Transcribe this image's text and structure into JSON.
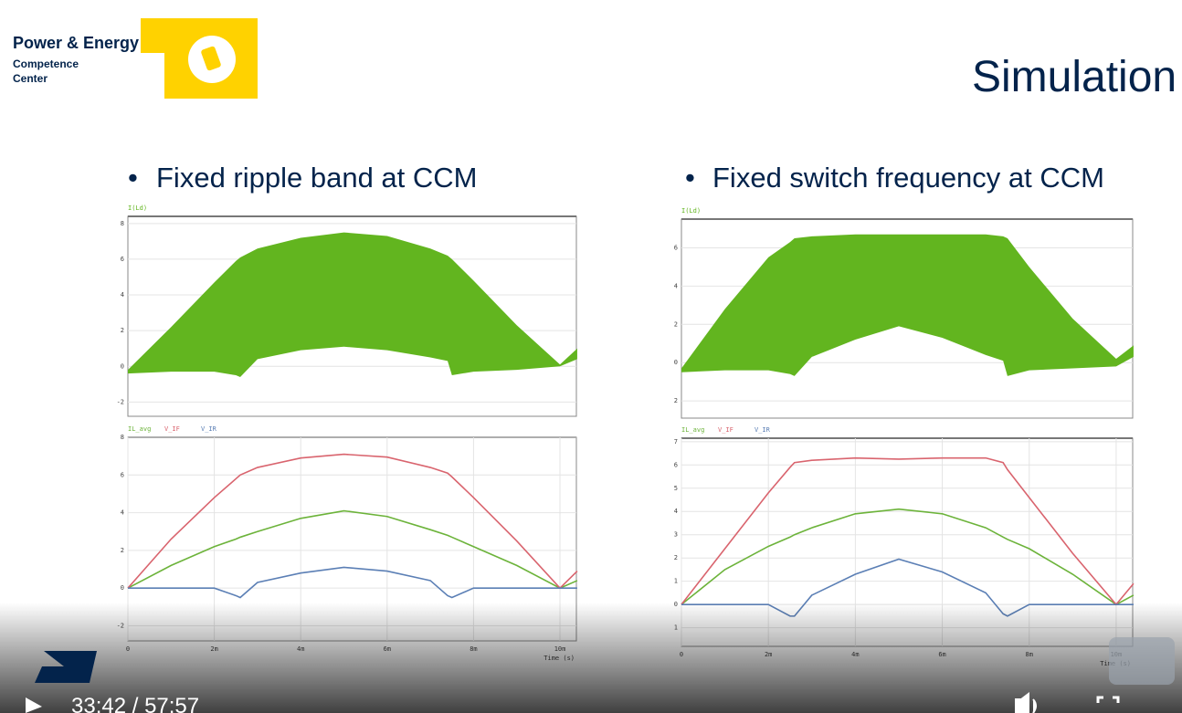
{
  "header": {
    "brand_line1": "Power & Energy",
    "brand_line2": "Competence",
    "brand_line3": "Center",
    "title": "Simulation"
  },
  "bullets": [
    "Fixed ripple band at CCM",
    "Fixed switch frequency at CCM"
  ],
  "player": {
    "time": "33:42 / 57:57"
  },
  "chart_data": [
    {
      "type": "band",
      "x": [
        0,
        1,
        2,
        2.5,
        2.6,
        3,
        4,
        5,
        6,
        7,
        7.4,
        7.5,
        8,
        9,
        10,
        10.4
      ],
      "series": [
        {
          "name": "I(Ld)",
          "color": "#62b51f",
          "upper": [
            -0.2,
            2.2,
            4.7,
            5.9,
            6.1,
            6.6,
            7.2,
            7.5,
            7.3,
            6.6,
            6.2,
            6.0,
            4.8,
            2.3,
            0.1,
            1.0
          ],
          "lower": [
            -0.4,
            -0.3,
            -0.3,
            -0.5,
            -0.6,
            0.4,
            0.9,
            1.1,
            0.9,
            0.5,
            0.3,
            -0.5,
            -0.3,
            -0.2,
            0,
            0.4
          ]
        }
      ],
      "xlim": [
        0,
        10.38
      ],
      "ylim": [
        -2.8,
        8.4
      ],
      "yticks": [
        8,
        6,
        4,
        2,
        0,
        -2
      ],
      "grid": true
    },
    {
      "type": "line",
      "x": [
        0,
        1,
        2,
        2.5,
        2.6,
        3,
        4,
        5,
        6,
        7,
        7.4,
        7.5,
        8,
        9,
        10,
        10.4
      ],
      "series": [
        {
          "name": "IL_avg",
          "color": "#6cb33a",
          "values": [
            0,
            1.2,
            2.2,
            2.6,
            2.7,
            3.0,
            3.7,
            4.1,
            3.8,
            3.1,
            2.8,
            2.7,
            2.2,
            1.2,
            0,
            0.4
          ]
        },
        {
          "name": "V_IF",
          "color": "#d9646e",
          "values": [
            0,
            2.6,
            4.8,
            5.8,
            6.0,
            6.4,
            6.9,
            7.1,
            6.95,
            6.4,
            6.1,
            5.9,
            4.8,
            2.5,
            0,
            0.9
          ]
        },
        {
          "name": "V_IR",
          "color": "#5b7fb5",
          "values": [
            0,
            0,
            0,
            -0.4,
            -0.5,
            0.3,
            0.8,
            1.1,
            0.9,
            0.4,
            -0.4,
            -0.5,
            0,
            0,
            0,
            0
          ]
        }
      ],
      "xlim": [
        0,
        10.38
      ],
      "ylim": [
        -2.8,
        8
      ],
      "yticks": [
        8,
        6,
        4,
        2,
        0,
        -2
      ],
      "xticks": [
        0,
        {
          "value": 2,
          "label": "2m"
        },
        {
          "value": 4,
          "label": "4m"
        },
        {
          "value": 6,
          "label": "6m"
        },
        {
          "value": 8,
          "label": "8m"
        },
        {
          "value": 10,
          "label": "10m"
        }
      ],
      "xlabel": "Time (s)",
      "grid": true
    },
    {
      "type": "band",
      "x": [
        0,
        1,
        2,
        2.5,
        2.6,
        3,
        4,
        5,
        6,
        7,
        7.4,
        7.5,
        8,
        9,
        10,
        10.4
      ],
      "series": [
        {
          "name": "I(Ld)",
          "color": "#62b51f",
          "upper": [
            -0.3,
            2.8,
            5.5,
            6.3,
            6.5,
            6.6,
            6.7,
            6.7,
            6.7,
            6.7,
            6.6,
            6.5,
            5.0,
            2.3,
            0.2,
            0.9
          ],
          "lower": [
            -0.5,
            -0.4,
            -0.4,
            -0.6,
            -0.7,
            0.3,
            1.2,
            1.9,
            1.3,
            0.4,
            0.1,
            -0.7,
            -0.4,
            -0.3,
            -0.2,
            0.3
          ]
        }
      ],
      "xlim": [
        0,
        10.38
      ],
      "ylim": [
        -2.9,
        7.5
      ],
      "yticks": [
        6,
        4,
        2,
        0,
        {
          "value": -2,
          "label": "2"
        }
      ],
      "grid": true
    },
    {
      "type": "line",
      "x": [
        0,
        1,
        2,
        2.5,
        2.6,
        3,
        4,
        5,
        6,
        7,
        7.4,
        7.5,
        8,
        9,
        10,
        10.4
      ],
      "series": [
        {
          "name": "IL_avg",
          "color": "#6cb33a",
          "values": [
            0,
            1.5,
            2.5,
            2.9,
            3.0,
            3.3,
            3.9,
            4.1,
            3.9,
            3.3,
            2.9,
            2.8,
            2.4,
            1.3,
            0,
            0.4
          ]
        },
        {
          "name": "V_IF",
          "color": "#d9646e",
          "values": [
            0,
            2.4,
            4.8,
            5.9,
            6.1,
            6.2,
            6.3,
            6.25,
            6.3,
            6.3,
            6.1,
            5.8,
            4.6,
            2.2,
            0,
            0.9
          ]
        },
        {
          "name": "V_IR",
          "color": "#5b7fb5",
          "values": [
            0,
            0,
            0,
            -0.5,
            -0.5,
            0.4,
            1.3,
            1.95,
            1.4,
            0.5,
            -0.4,
            -0.5,
            0,
            0,
            0,
            0
          ]
        }
      ],
      "xlim": [
        0,
        10.38
      ],
      "ylim": [
        -1.8,
        7.15
      ],
      "yticks": [
        7,
        6,
        5,
        4,
        3,
        2,
        1,
        0,
        {
          "value": -1,
          "label": "1"
        }
      ],
      "xticks": [
        0,
        {
          "value": 2,
          "label": "2m"
        },
        {
          "value": 4,
          "label": "4m"
        },
        {
          "value": 6,
          "label": "6m"
        },
        {
          "value": 8,
          "label": "8m"
        },
        {
          "value": 10,
          "label": "10m"
        }
      ],
      "xlabel": "Time (s)",
      "grid": true
    }
  ]
}
